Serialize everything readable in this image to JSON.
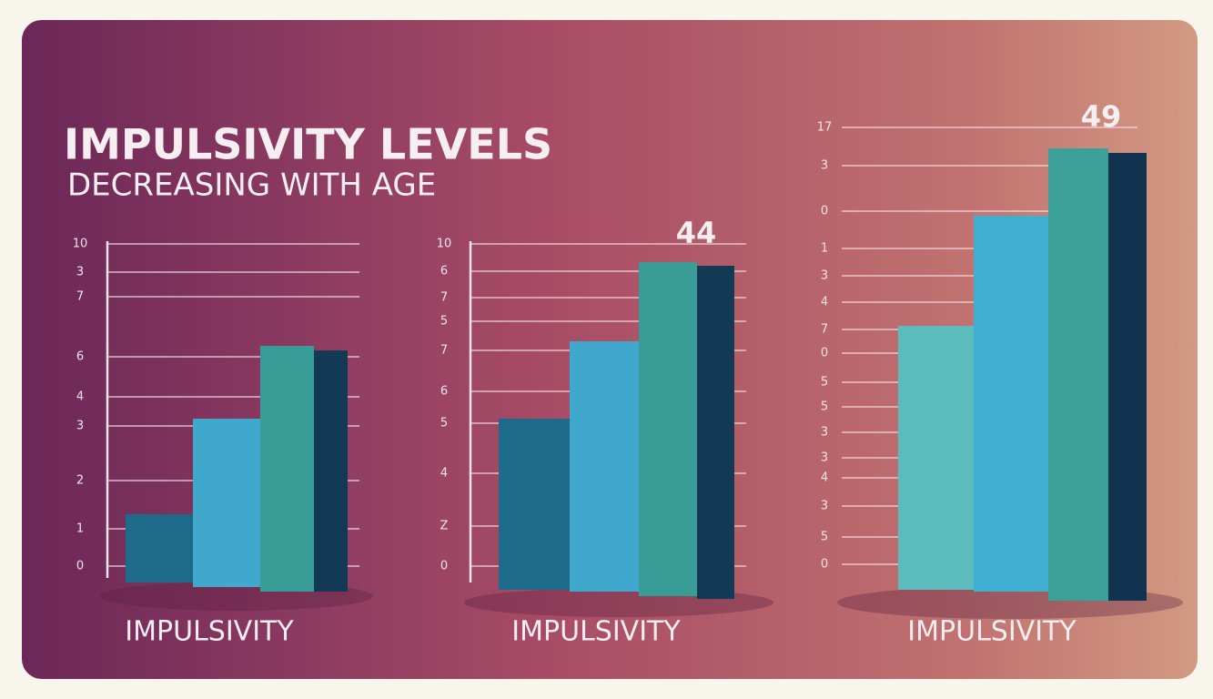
{
  "title": "IMPULSIVITY LEVELS",
  "subtitle": "DECREASING WITH AGE",
  "panels": [
    {
      "ticks": [
        "10",
        "3",
        "7",
        "6",
        "4",
        "3",
        "2",
        "1",
        "0"
      ],
      "label": "IMPULSIVITY"
    },
    {
      "value_label": "44",
      "ticks": [
        "10",
        "6",
        "7",
        "5",
        "7",
        "6",
        "5",
        "4",
        "Z",
        "0"
      ],
      "label": "IMPULSIVITY"
    },
    {
      "value_label": "49",
      "ticks": [
        "17",
        "3",
        "0",
        "1",
        "3",
        "4",
        "7",
        "0",
        "5",
        "5",
        "3",
        "3",
        "4",
        "3",
        "5",
        "0"
      ],
      "label": "IMPULSIVITY"
    }
  ]
}
